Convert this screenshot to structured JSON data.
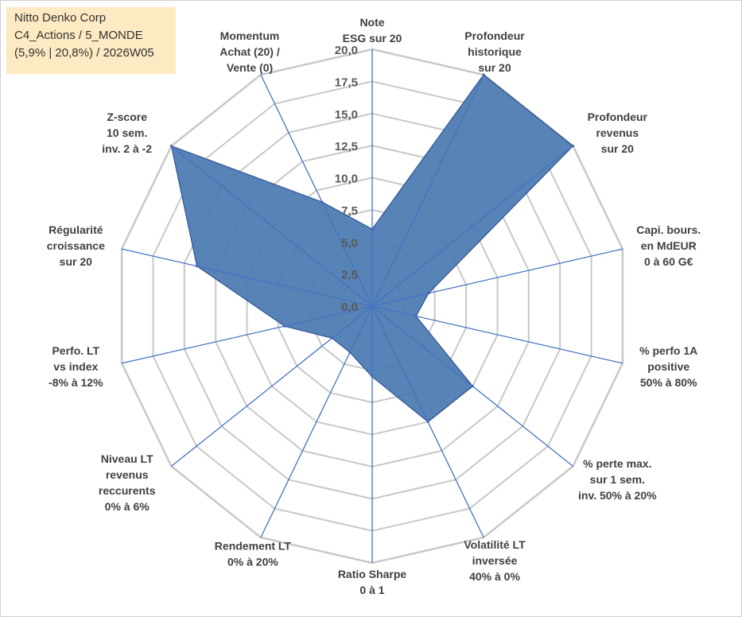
{
  "info": {
    "company": "Nitto Denko Corp",
    "portfolio": "C4_Actions / 5_MONDE",
    "stats": "(5,9% | 20,8%) / 2026W05"
  },
  "colors": {
    "fill": "#4a78b0",
    "stroke": "#2f5597",
    "grid": "#c8c8c8",
    "spoke": "#4472c4",
    "info_bg": "#fde9c2"
  },
  "chart_data": {
    "type": "radar",
    "title": "",
    "rmin": 0,
    "rmax": 20,
    "ticks": [
      "0,0",
      "2,5",
      "5,0",
      "7,5",
      "10,0",
      "12,5",
      "15,0",
      "17,5",
      "20,0"
    ],
    "axes": [
      {
        "label": [
          "Note",
          "ESG sur 20"
        ],
        "value": 6.0
      },
      {
        "label": [
          "Profondeur",
          "historique",
          "sur 20"
        ],
        "value": 20.0
      },
      {
        "label": [
          "Profondeur",
          "revenus",
          "sur 20"
        ],
        "value": 20.0
      },
      {
        "label": [
          "Capi. bours.",
          "en MdEUR",
          "0 à 60 G€"
        ],
        "value": 4.5
      },
      {
        "label": [
          "% perfo 1A",
          "positive",
          "50% à 80%"
        ],
        "value": 3.5
      },
      {
        "label": [
          "% perte max.",
          "sur 1 sem.",
          "inv. 50% à 20%"
        ],
        "value": 10.0
      },
      {
        "label": [
          "Volatilité LT",
          "inversée",
          "40% à 0%"
        ],
        "value": 10.0
      },
      {
        "label": [
          "Ratio Sharpe",
          "0 à 1"
        ],
        "value": 5.5
      },
      {
        "label": [
          "Rendement LT",
          "0% à 20%"
        ],
        "value": 4.0
      },
      {
        "label": [
          "Niveau LT",
          "revenus",
          "reccurents",
          "0% à 6%"
        ],
        "value": 4.0
      },
      {
        "label": [
          "Perfo. LT",
          "vs index",
          "-8% à 12%"
        ],
        "value": 7.0
      },
      {
        "label": [
          "Régularité",
          "croissance",
          "sur 20"
        ],
        "value": 14.0
      },
      {
        "label": [
          "Z-score",
          "10 sem.",
          "inv. 2 à -2"
        ],
        "value": 20.0
      },
      {
        "label": [
          "Momentum",
          "Achat (20) /",
          "Vente (0)"
        ],
        "value": 9.0
      }
    ]
  }
}
